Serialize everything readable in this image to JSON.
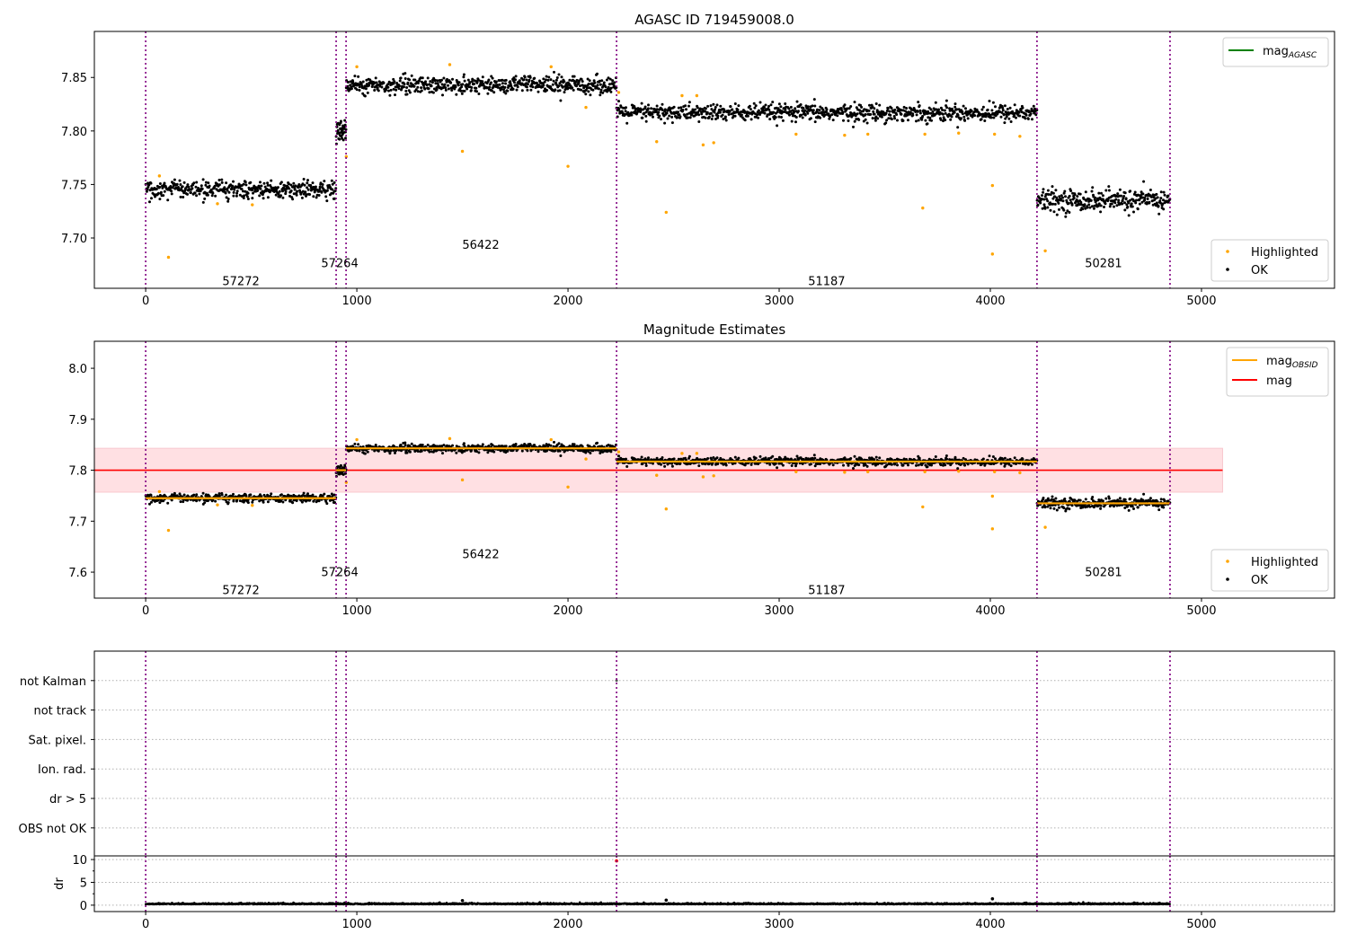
{
  "chart_data": [
    {
      "type": "scatter",
      "title": "AGASC ID 719459008.0",
      "xlim": [
        -243,
        5630
      ],
      "ylim": [
        7.653,
        7.893
      ],
      "xticks": [
        0,
        1000,
        2000,
        3000,
        4000,
        5000
      ],
      "yticks": [
        7.7,
        7.75,
        7.8,
        7.85
      ],
      "ytick_labels": [
        "7.70",
        "7.75",
        "7.80",
        "7.85"
      ],
      "legend_lines": [
        {
          "label": "mag",
          "sub": "AGASC",
          "color": "#008000"
        }
      ],
      "legend_points": [
        {
          "label": "Highlighted",
          "color": "#ffa500"
        },
        {
          "label": "OK",
          "color": "#000000"
        }
      ],
      "legend_placement": [
        "top-right",
        "bottom-right"
      ],
      "obsid_labels": [
        {
          "text": "57272",
          "x": 451,
          "y": 7.66
        },
        {
          "text": "57264",
          "x": 919,
          "y": 7.677
        },
        {
          "text": "56422",
          "x": 1587,
          "y": 7.694
        },
        {
          "text": "51187",
          "x": 3225,
          "y": 7.66
        },
        {
          "text": "50281",
          "x": 4536,
          "y": 7.677
        }
      ]
    },
    {
      "type": "scatter",
      "title": "Magnitude Estimates",
      "xlim": [
        -243,
        5630
      ],
      "ylim": [
        7.549,
        8.053
      ],
      "xticks": [
        0,
        1000,
        2000,
        3000,
        4000,
        5000
      ],
      "yticks": [
        7.6,
        7.7,
        7.8,
        7.9,
        8.0
      ],
      "ytick_labels": [
        "7.6",
        "7.7",
        "7.8",
        "7.9",
        "8.0"
      ],
      "mag": 7.8,
      "mag_band": [
        7.757,
        7.843
      ],
      "mag_xrange": [
        -243,
        5100
      ],
      "legend_lines": [
        {
          "label": "mag",
          "sub": "OBSID",
          "color": "#ffa500"
        },
        {
          "label": "mag",
          "sub": "",
          "color": "#ff0000"
        }
      ],
      "legend_points": [
        {
          "label": "Highlighted",
          "color": "#ffa500"
        },
        {
          "label": "OK",
          "color": "#000000"
        }
      ],
      "legend_placement": [
        "top-right",
        "bottom-right"
      ],
      "obsid_labels": [
        {
          "text": "57272",
          "x": 451,
          "y": 7.566
        },
        {
          "text": "57264",
          "x": 919,
          "y": 7.601
        },
        {
          "text": "56422",
          "x": 1587,
          "y": 7.636
        },
        {
          "text": "51187",
          "x": 3225,
          "y": 7.566
        },
        {
          "text": "50281",
          "x": 4536,
          "y": 7.601
        }
      ]
    },
    {
      "type": "scatter",
      "title": "",
      "xlim": [
        -243,
        5630
      ],
      "categories": [
        "OBS not OK",
        "dr > 5",
        "Ion. rad.",
        "Sat. pixel.",
        "not track",
        "not Kalman"
      ],
      "flag_points": [
        {
          "x": 2230,
          "category": "not Kalman"
        }
      ]
    },
    {
      "type": "scatter",
      "ylabel": "dr",
      "xlim": [
        -243,
        5630
      ],
      "ylim": [
        -1.4,
        10.8
      ],
      "yticks": [
        0,
        5,
        10
      ],
      "xticks": [
        0,
        1000,
        2000,
        3000,
        4000,
        5000
      ],
      "dr_level": 0.2,
      "dr_outliers": [
        {
          "x": 2230,
          "y": 9.7,
          "color": "#ff0000"
        },
        {
          "x": 1500,
          "y": 1.0
        },
        {
          "x": 2465,
          "y": 1.1
        },
        {
          "x": 4010,
          "y": 1.4
        }
      ]
    }
  ],
  "obs_boundaries": [
    0,
    902,
    949,
    2230,
    4221,
    4851
  ],
  "segments": [
    {
      "obsid": "57272",
      "start": 0,
      "end": 902,
      "mag": 7.745,
      "noise": 0.004,
      "n": 420
    },
    {
      "obsid": "57264",
      "start": 902,
      "end": 949,
      "mag": 7.8,
      "noise": 0.005,
      "n": 40
    },
    {
      "obsid": "56422",
      "start": 949,
      "end": 2230,
      "mag": 7.843,
      "noise": 0.004,
      "n": 600
    },
    {
      "obsid": "51187",
      "start": 2230,
      "end": 4221,
      "mag": 7.817,
      "noise": 0.004,
      "n": 900
    },
    {
      "obsid": "50281",
      "start": 4221,
      "end": 4851,
      "mag": 7.735,
      "noise": 0.005,
      "n": 300
    }
  ],
  "highlighted": [
    [
      65,
      7.758
    ],
    [
      108,
      7.682
    ],
    [
      340,
      7.732
    ],
    [
      505,
      7.731
    ],
    [
      950,
      7.776
    ],
    [
      1000,
      7.86
    ],
    [
      1440,
      7.862
    ],
    [
      1500,
      7.781
    ],
    [
      1920,
      7.86
    ],
    [
      2000,
      7.767
    ],
    [
      2085,
      7.822
    ],
    [
      2240,
      7.836
    ],
    [
      2420,
      7.79
    ],
    [
      2465,
      7.724
    ],
    [
      2540,
      7.833
    ],
    [
      2610,
      7.833
    ],
    [
      2640,
      7.787
    ],
    [
      2690,
      7.789
    ],
    [
      3080,
      7.797
    ],
    [
      3310,
      7.796
    ],
    [
      3420,
      7.797
    ],
    [
      3680,
      7.728
    ],
    [
      3690,
      7.797
    ],
    [
      3850,
      7.798
    ],
    [
      4010,
      7.749
    ],
    [
      4010,
      7.685
    ],
    [
      4020,
      7.797
    ],
    [
      4140,
      7.795
    ],
    [
      4260,
      7.688
    ]
  ],
  "colors": {
    "boundary": "#800080",
    "ok": "#000000",
    "highlighted": "#ffa500",
    "mag": "#ff0000",
    "band": "#ffe0e3",
    "agasc": "#008000"
  }
}
